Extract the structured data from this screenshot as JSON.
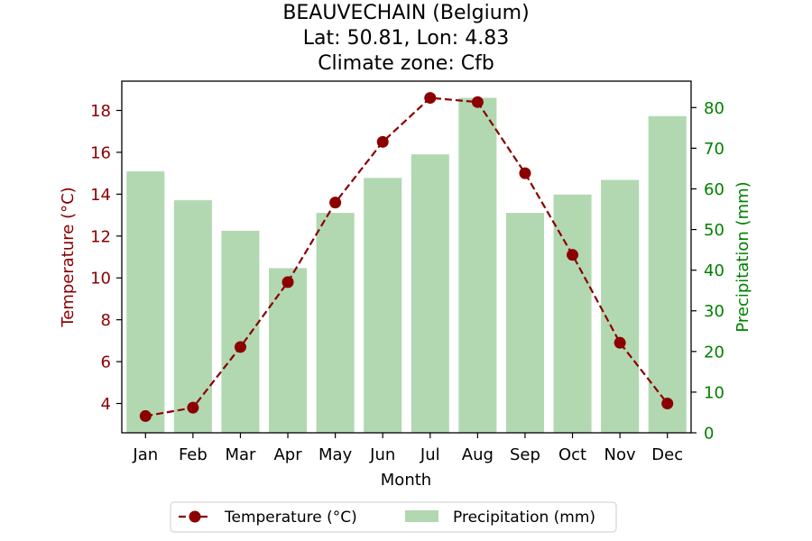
{
  "chart_data": {
    "type": "bar+line",
    "title_lines": [
      "BEAUVECHAIN (Belgium)",
      "Lat: 50.81, Lon: 4.83",
      "Climate zone: Cfb"
    ],
    "xlabel": "Month",
    "ylabel_left": "Temperature (°C)",
    "ylabel_right": "Precipitation (mm)",
    "categories": [
      "Jan",
      "Feb",
      "Mar",
      "Apr",
      "May",
      "Jun",
      "Jul",
      "Aug",
      "Sep",
      "Oct",
      "Nov",
      "Dec"
    ],
    "temperature": {
      "name": "Temperature (°C)",
      "values": [
        3.4,
        3.8,
        6.7,
        9.8,
        13.6,
        16.5,
        18.6,
        18.4,
        15.0,
        11.1,
        6.9,
        4.0
      ],
      "color": "#8b0000"
    },
    "precipitation": {
      "name": "Precipitation (mm)",
      "values": [
        64.3,
        57.2,
        49.7,
        40.5,
        54.1,
        62.7,
        68.5,
        82.4,
        54.1,
        58.6,
        62.2,
        77.9
      ],
      "color": "#b2d8b2"
    },
    "left_axis": {
      "ylim": [
        2.6,
        19.4
      ],
      "ticks": [
        4,
        6,
        8,
        10,
        12,
        14,
        16,
        18
      ],
      "color": "#8b0000"
    },
    "right_axis": {
      "ylim": [
        0,
        86.5
      ],
      "ticks": [
        0,
        10,
        20,
        30,
        40,
        50,
        60,
        70,
        80
      ],
      "color": "#008000"
    },
    "legend_position": "bottom-center"
  }
}
